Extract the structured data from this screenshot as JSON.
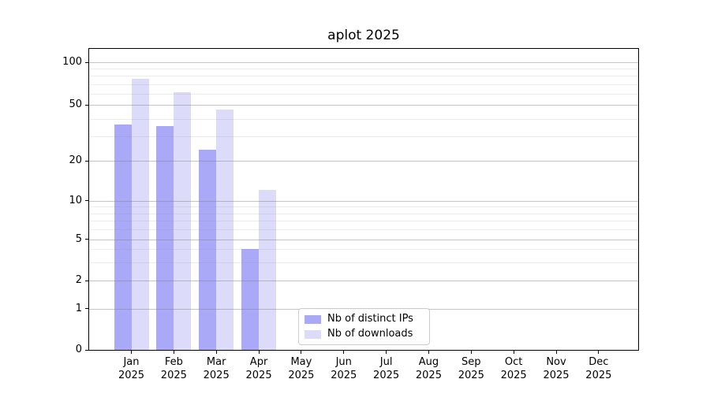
{
  "figure": {
    "title": "aplot 2025"
  },
  "chart_data": {
    "type": "bar",
    "title": "aplot 2025",
    "x_categories": [
      [
        "Jan",
        "2025"
      ],
      [
        "Feb",
        "2025"
      ],
      [
        "Mar",
        "2025"
      ],
      [
        "Apr",
        "2025"
      ],
      [
        "May",
        "2025"
      ],
      [
        "Jun",
        "2025"
      ],
      [
        "Jul",
        "2025"
      ],
      [
        "Aug",
        "2025"
      ],
      [
        "Sep",
        "2025"
      ],
      [
        "Oct",
        "2025"
      ],
      [
        "Nov",
        "2025"
      ],
      [
        "Dec",
        "2025"
      ]
    ],
    "series": [
      {
        "name": "Nb of distinct IPs",
        "color": "#a9a9f7",
        "values": [
          36,
          35,
          24,
          4,
          0,
          0,
          0,
          0,
          0,
          0,
          0,
          0
        ]
      },
      {
        "name": "Nb of downloads",
        "color": "#dcdcfa",
        "values": [
          76,
          61,
          46,
          12,
          0,
          0,
          0,
          0,
          0,
          0,
          0,
          0
        ]
      }
    ],
    "y_axis": {
      "scale": "symlog",
      "ticks": [
        0,
        1,
        2,
        5,
        10,
        20,
        50,
        100
      ],
      "minor_gridlines": [
        3,
        4,
        6,
        7,
        8,
        9,
        30,
        40,
        60,
        70,
        80,
        90
      ],
      "range": [
        0,
        130
      ]
    },
    "grid": "horizontal major and minor gridlines drawn over bars",
    "legend": {
      "position": "lower center",
      "entries": [
        "Nb of distinct IPs",
        "Nb of downloads"
      ]
    }
  }
}
